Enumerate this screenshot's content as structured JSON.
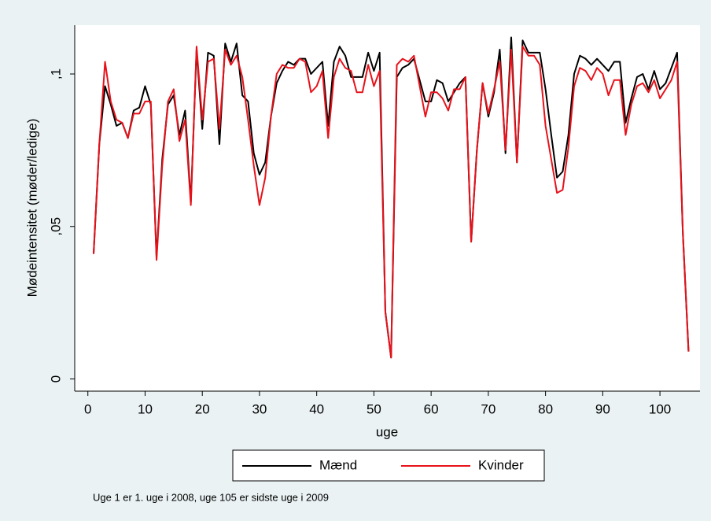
{
  "chart_data": {
    "type": "line",
    "ylabel": "Mødeintensitet (møder/ledige)",
    "xlabel": "uge",
    "note": "Uge 1 er 1. uge i 2008, uge 105 er sidste uge i 2009",
    "xlim": [
      -2.3,
      107
    ],
    "ylim": [
      -0.004,
      0.116
    ],
    "xticks": [
      0,
      10,
      20,
      30,
      40,
      50,
      60,
      70,
      80,
      90,
      100
    ],
    "yticks": [
      0,
      {
        "value": 0.05,
        "label": ",05"
      },
      {
        "value": 0.1,
        "label": ",1"
      }
    ],
    "x": [
      1,
      2,
      3,
      4,
      5,
      6,
      7,
      8,
      9,
      10,
      11,
      12,
      13,
      14,
      15,
      16,
      17,
      18,
      19,
      20,
      21,
      22,
      23,
      24,
      25,
      26,
      27,
      28,
      29,
      30,
      31,
      32,
      33,
      34,
      35,
      36,
      37,
      38,
      39,
      40,
      41,
      42,
      43,
      44,
      45,
      46,
      47,
      48,
      49,
      50,
      51,
      52,
      53,
      54,
      55,
      56,
      57,
      58,
      59,
      60,
      61,
      62,
      63,
      64,
      65,
      66,
      67,
      68,
      69,
      70,
      71,
      72,
      73,
      74,
      75,
      76,
      77,
      78,
      79,
      80,
      81,
      82,
      83,
      84,
      85,
      86,
      87,
      88,
      89,
      90,
      91,
      92,
      93,
      94,
      95,
      96,
      97,
      98,
      99,
      100,
      101,
      102,
      103,
      104,
      105
    ],
    "series": [
      {
        "name": "Mænd",
        "color": "#000000",
        "values": [
          0.041,
          0.077,
          0.096,
          0.09,
          0.083,
          0.084,
          0.079,
          0.088,
          0.089,
          0.096,
          0.09,
          0.04,
          0.072,
          0.09,
          0.093,
          0.08,
          0.088,
          0.058,
          0.108,
          0.082,
          0.107,
          0.106,
          0.077,
          0.11,
          0.104,
          0.11,
          0.093,
          0.091,
          0.074,
          0.067,
          0.071,
          0.086,
          0.097,
          0.101,
          0.104,
          0.103,
          0.105,
          0.105,
          0.1,
          0.102,
          0.104,
          0.083,
          0.104,
          0.109,
          0.106,
          0.099,
          0.099,
          0.099,
          0.107,
          0.101,
          0.107,
          0.022,
          0.007,
          0.099,
          0.102,
          0.103,
          0.105,
          0.098,
          0.091,
          0.091,
          0.098,
          0.097,
          0.091,
          0.094,
          0.097,
          0.099,
          0.045,
          0.075,
          0.097,
          0.086,
          0.094,
          0.108,
          0.074,
          0.112,
          0.071,
          0.111,
          0.107,
          0.107,
          0.107,
          0.095,
          0.08,
          0.066,
          0.068,
          0.08,
          0.1,
          0.106,
          0.105,
          0.103,
          0.105,
          0.103,
          0.101,
          0.104,
          0.104,
          0.084,
          0.092,
          0.099,
          0.1,
          0.095,
          0.101,
          0.095,
          0.097,
          0.102,
          0.107,
          0.048,
          0.009
        ]
      },
      {
        "name": "Kvinder",
        "color": "#e8111a",
        "values": [
          0.041,
          0.077,
          0.104,
          0.091,
          0.085,
          0.084,
          0.079,
          0.087,
          0.087,
          0.091,
          0.091,
          0.039,
          0.07,
          0.091,
          0.095,
          0.078,
          0.085,
          0.057,
          0.109,
          0.085,
          0.104,
          0.105,
          0.082,
          0.108,
          0.103,
          0.106,
          0.099,
          0.085,
          0.07,
          0.057,
          0.066,
          0.086,
          0.1,
          0.103,
          0.102,
          0.102,
          0.105,
          0.104,
          0.094,
          0.096,
          0.101,
          0.079,
          0.099,
          0.105,
          0.102,
          0.101,
          0.094,
          0.094,
          0.103,
          0.096,
          0.101,
          0.022,
          0.007,
          0.103,
          0.105,
          0.104,
          0.106,
          0.096,
          0.086,
          0.094,
          0.094,
          0.092,
          0.088,
          0.095,
          0.095,
          0.099,
          0.045,
          0.075,
          0.097,
          0.087,
          0.095,
          0.104,
          0.075,
          0.108,
          0.071,
          0.109,
          0.106,
          0.106,
          0.103,
          0.083,
          0.072,
          0.061,
          0.062,
          0.076,
          0.096,
          0.102,
          0.101,
          0.098,
          0.102,
          0.1,
          0.093,
          0.098,
          0.098,
          0.08,
          0.09,
          0.096,
          0.097,
          0.094,
          0.098,
          0.092,
          0.095,
          0.098,
          0.104,
          0.048,
          0.009
        ]
      }
    ]
  }
}
